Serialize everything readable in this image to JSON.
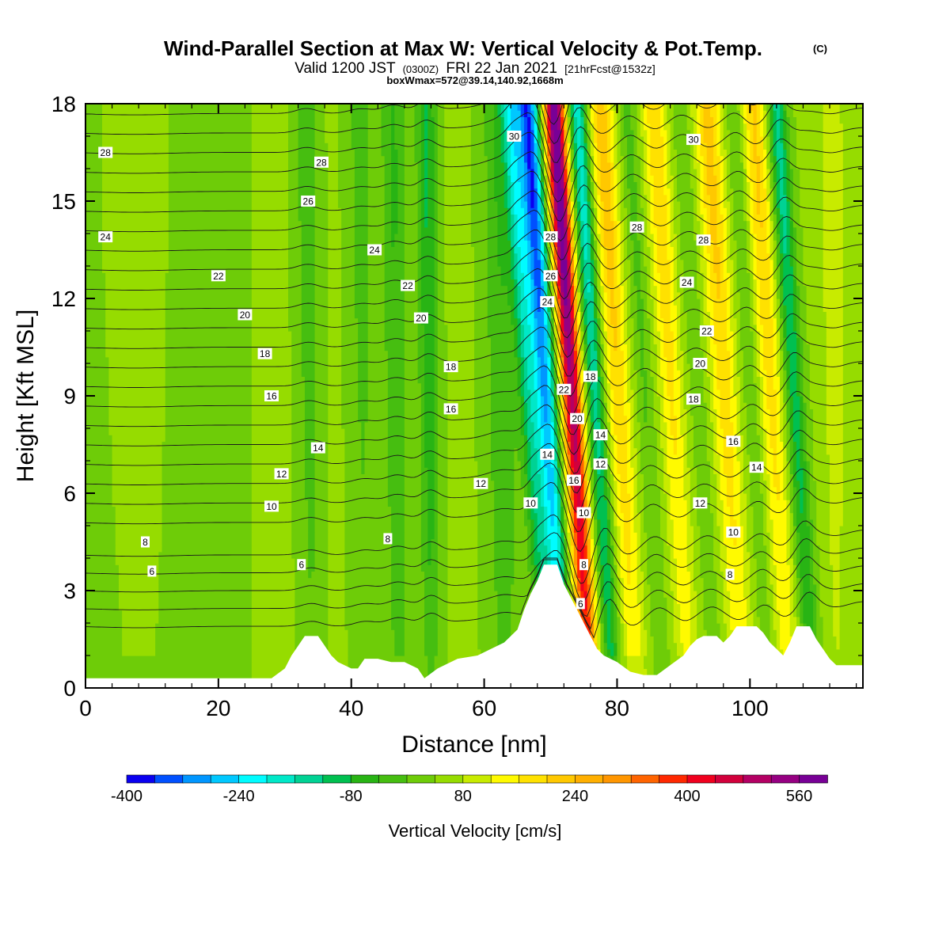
{
  "title": {
    "main": "Wind-Parallel Section at Max W: Vertical Velocity & Pot.Temp.",
    "copyright": "(C)",
    "valid_prefix": "Valid 1200 JST",
    "valid_utc": "(0300Z)",
    "valid_date": "FRI 22 Jan 2021",
    "forecast": "[21hrFcst@1532z]",
    "boxinfo": "boxWmax=572@39.14,140.92,1668m"
  },
  "chart_data": {
    "type": "heatmap",
    "xlabel": "Distance [nm]",
    "ylabel": "Height [Kft MSL]",
    "xlim": [
      0,
      117
    ],
    "ylim": [
      0,
      18
    ],
    "x_ticks": [
      0,
      20,
      40,
      60,
      80,
      100
    ],
    "y_ticks": [
      0,
      3,
      6,
      9,
      12,
      15,
      18
    ],
    "colorbar": {
      "label": "Vertical Velocity [cm/s]",
      "levels": [
        -400,
        -360,
        -320,
        -280,
        -240,
        -200,
        -160,
        -120,
        -80,
        -40,
        0,
        40,
        80,
        120,
        160,
        200,
        240,
        280,
        320,
        360,
        400,
        440,
        480,
        520,
        560,
        600
      ],
      "tick_labels": [
        "-400",
        "-240",
        "-80",
        "80",
        "240",
        "400",
        "560"
      ],
      "tick_values": [
        -400,
        -240,
        -80,
        80,
        240,
        400,
        560
      ],
      "colors": [
        "#0a00f0",
        "#0050ff",
        "#0096ff",
        "#00c8ff",
        "#00fcff",
        "#00e8c8",
        "#00d294",
        "#00c050",
        "#28b414",
        "#46be10",
        "#6ecc08",
        "#96dc00",
        "#c8eb00",
        "#fffa00",
        "#ffe100",
        "#ffc800",
        "#ffaf00",
        "#ff9600",
        "#ff6400",
        "#ff2800",
        "#f0001e",
        "#d2003c",
        "#b40064",
        "#960082",
        "#780096"
      ]
    },
    "updraft_columns": [
      {
        "x": 8,
        "w": 6,
        "peak": 20
      },
      {
        "x": 34,
        "w": 1.8,
        "peak": -70
      },
      {
        "x": 42,
        "w": 2,
        "peak": -60
      },
      {
        "x": 47,
        "w": 1.8,
        "peak": -90
      },
      {
        "x": 52,
        "w": 1.5,
        "peak": -130
      },
      {
        "x": 63,
        "w": 2.5,
        "peak": -90
      },
      {
        "x": 68.5,
        "w": 1.4,
        "peak": -200
      },
      {
        "x": 71,
        "w": 1.6,
        "peak": -400
      },
      {
        "x": 75,
        "w": 1.5,
        "peak": 572
      },
      {
        "x": 78.5,
        "w": 1.3,
        "peak": -230
      },
      {
        "x": 82,
        "w": 1.8,
        "peak": 180
      },
      {
        "x": 86,
        "w": 1.2,
        "peak": -60
      },
      {
        "x": 90,
        "w": 1.8,
        "peak": 150
      },
      {
        "x": 94,
        "w": 1.3,
        "peak": -40
      },
      {
        "x": 98,
        "w": 2,
        "peak": 170
      },
      {
        "x": 102,
        "w": 1.2,
        "peak": -50
      },
      {
        "x": 105,
        "w": 1.8,
        "peak": 160
      },
      {
        "x": 108.5,
        "w": 1.4,
        "peak": -180
      },
      {
        "x": 113,
        "w": 2,
        "peak": 60
      }
    ],
    "terrain": [
      [
        0,
        0.3
      ],
      [
        28,
        0.3
      ],
      [
        30,
        0.6
      ],
      [
        31,
        1.0
      ],
      [
        32,
        1.3
      ],
      [
        33,
        1.6
      ],
      [
        35,
        1.6
      ],
      [
        36,
        1.3
      ],
      [
        37,
        1.0
      ],
      [
        38,
        0.8
      ],
      [
        40,
        0.6
      ],
      [
        41,
        0.6
      ],
      [
        42,
        0.9
      ],
      [
        44,
        0.9
      ],
      [
        46,
        0.8
      ],
      [
        48,
        0.8
      ],
      [
        50,
        0.6
      ],
      [
        51,
        0.3
      ],
      [
        53,
        0.6
      ],
      [
        56,
        0.9
      ],
      [
        59,
        1.0
      ],
      [
        61,
        1.2
      ],
      [
        63,
        1.4
      ],
      [
        65,
        1.8
      ],
      [
        66,
        2.4
      ],
      [
        67,
        2.9
      ],
      [
        68,
        3.3
      ],
      [
        69,
        3.8
      ],
      [
        71,
        3.8
      ],
      [
        72,
        3.2
      ],
      [
        73,
        2.8
      ],
      [
        74,
        2.4
      ],
      [
        75,
        2.0
      ],
      [
        76,
        1.6
      ],
      [
        77,
        1.2
      ],
      [
        78,
        1.0
      ],
      [
        80,
        0.8
      ],
      [
        82,
        0.5
      ],
      [
        84,
        0.4
      ],
      [
        86,
        0.4
      ],
      [
        88,
        0.7
      ],
      [
        90,
        1.0
      ],
      [
        91,
        1.3
      ],
      [
        92,
        1.5
      ],
      [
        93,
        1.6
      ],
      [
        95,
        1.6
      ],
      [
        96,
        1.4
      ],
      [
        97,
        1.6
      ],
      [
        98,
        1.9
      ],
      [
        101,
        1.9
      ],
      [
        102,
        1.7
      ],
      [
        103,
        1.4
      ],
      [
        104,
        1.2
      ],
      [
        105,
        1.0
      ],
      [
        106,
        1.4
      ],
      [
        107,
        1.9
      ],
      [
        109,
        1.9
      ],
      [
        110,
        1.5
      ],
      [
        111,
        1.2
      ],
      [
        112,
        0.9
      ],
      [
        113,
        0.7
      ],
      [
        117,
        0.7
      ]
    ],
    "theta_levels": [
      2,
      3,
      4,
      5,
      6,
      7,
      8,
      9,
      10,
      11,
      12,
      13,
      14,
      15,
      16,
      17,
      18,
      19,
      20,
      21,
      22,
      23,
      24,
      25,
      26,
      27,
      28,
      29,
      30,
      31
    ],
    "contour_labels": [
      {
        "x": 3,
        "y": 16.5,
        "text": "28"
      },
      {
        "x": 3,
        "y": 13.9,
        "text": "24"
      },
      {
        "x": 9,
        "y": 4.5,
        "text": "8"
      },
      {
        "x": 10,
        "y": 3.6,
        "text": "6"
      },
      {
        "x": 20,
        "y": 12.7,
        "text": "22"
      },
      {
        "x": 24,
        "y": 11.5,
        "text": "20"
      },
      {
        "x": 27,
        "y": 10.3,
        "text": "18"
      },
      {
        "x": 28,
        "y": 9.0,
        "text": "16"
      },
      {
        "x": 29.5,
        "y": 6.6,
        "text": "12"
      },
      {
        "x": 28,
        "y": 5.6,
        "text": "10"
      },
      {
        "x": 32.5,
        "y": 3.8,
        "text": "6"
      },
      {
        "x": 35,
        "y": 7.4,
        "text": "14"
      },
      {
        "x": 35.5,
        "y": 16.2,
        "text": "28"
      },
      {
        "x": 33.5,
        "y": 15.0,
        "text": "26"
      },
      {
        "x": 43.5,
        "y": 13.5,
        "text": "24"
      },
      {
        "x": 45.5,
        "y": 4.6,
        "text": "8"
      },
      {
        "x": 48.5,
        "y": 12.4,
        "text": "22"
      },
      {
        "x": 50.5,
        "y": 11.4,
        "text": "20"
      },
      {
        "x": 55,
        "y": 9.9,
        "text": "18"
      },
      {
        "x": 55,
        "y": 8.6,
        "text": "16"
      },
      {
        "x": 59.5,
        "y": 6.3,
        "text": "12"
      },
      {
        "x": 67,
        "y": 5.7,
        "text": "10"
      },
      {
        "x": 64.5,
        "y": 17.0,
        "text": "30"
      },
      {
        "x": 70,
        "y": 13.9,
        "text": "28"
      },
      {
        "x": 70,
        "y": 12.7,
        "text": "26"
      },
      {
        "x": 69.5,
        "y": 11.9,
        "text": "24"
      },
      {
        "x": 72,
        "y": 9.2,
        "text": "22"
      },
      {
        "x": 74,
        "y": 8.3,
        "text": "20"
      },
      {
        "x": 76,
        "y": 9.6,
        "text": "18"
      },
      {
        "x": 69.5,
        "y": 7.2,
        "text": "14"
      },
      {
        "x": 77.5,
        "y": 7.8,
        "text": "14"
      },
      {
        "x": 77.5,
        "y": 6.9,
        "text": "12"
      },
      {
        "x": 73.5,
        "y": 6.4,
        "text": "16"
      },
      {
        "x": 75,
        "y": 5.4,
        "text": "10"
      },
      {
        "x": 75,
        "y": 3.8,
        "text": "8"
      },
      {
        "x": 74.5,
        "y": 2.6,
        "text": "6"
      },
      {
        "x": 91.5,
        "y": 16.9,
        "text": "30"
      },
      {
        "x": 83,
        "y": 14.2,
        "text": "28"
      },
      {
        "x": 93,
        "y": 13.8,
        "text": "28"
      },
      {
        "x": 90.5,
        "y": 12.5,
        "text": "24"
      },
      {
        "x": 93.5,
        "y": 11.0,
        "text": "22"
      },
      {
        "x": 92.5,
        "y": 10.0,
        "text": "20"
      },
      {
        "x": 91.5,
        "y": 8.9,
        "text": "18"
      },
      {
        "x": 97.5,
        "y": 7.6,
        "text": "16"
      },
      {
        "x": 101,
        "y": 6.8,
        "text": "14"
      },
      {
        "x": 92.5,
        "y": 5.7,
        "text": "12"
      },
      {
        "x": 97.5,
        "y": 4.8,
        "text": "10"
      },
      {
        "x": 97,
        "y": 3.5,
        "text": "8"
      }
    ]
  }
}
